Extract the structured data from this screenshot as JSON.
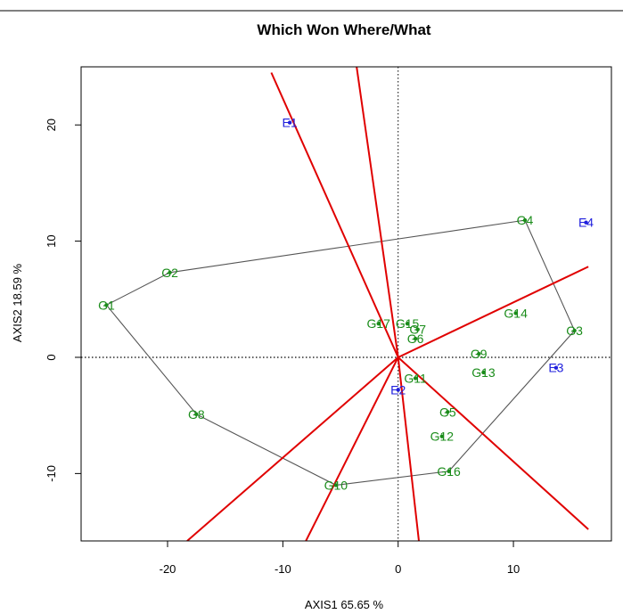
{
  "chart_data": {
    "type": "scatter",
    "title": "Which Won Where/What",
    "xlabel": "AXIS1 65.65 %",
    "ylabel": "AXIS2 18.59 %",
    "xlim": [
      -27.5,
      18.5
    ],
    "ylim": [
      -15.8,
      25
    ],
    "xticks": [
      -20,
      -10,
      0,
      10
    ],
    "yticks": [
      -10,
      0,
      10,
      20
    ],
    "colors": {
      "genotype": "#1a8c1a",
      "environment": "#2020dd",
      "sector_lines": "#e00000",
      "hull": "#555555",
      "frame": "#000000"
    },
    "genotypes": [
      {
        "label": "G1",
        "x": -25.3,
        "y": 4.5
      },
      {
        "label": "G2",
        "x": -19.8,
        "y": 7.3
      },
      {
        "label": "G3",
        "x": 15.3,
        "y": 2.3
      },
      {
        "label": "G4",
        "x": 11.0,
        "y": 11.8
      },
      {
        "label": "G5",
        "x": 4.3,
        "y": -4.7
      },
      {
        "label": "G6",
        "x": 1.5,
        "y": 1.6
      },
      {
        "label": "G7",
        "x": 1.7,
        "y": 2.4
      },
      {
        "label": "G8",
        "x": -17.5,
        "y": -4.9
      },
      {
        "label": "G9",
        "x": 7.0,
        "y": 0.3
      },
      {
        "label": "G10",
        "x": -5.4,
        "y": -11.0
      },
      {
        "label": "G11",
        "x": 1.5,
        "y": -1.8
      },
      {
        "label": "G12",
        "x": 3.8,
        "y": -6.8
      },
      {
        "label": "G13",
        "x": 7.4,
        "y": -1.3
      },
      {
        "label": "G14",
        "x": 10.2,
        "y": 3.8
      },
      {
        "label": "G15",
        "x": 0.8,
        "y": 2.9
      },
      {
        "label": "G16",
        "x": 4.4,
        "y": -9.8
      },
      {
        "label": "G17",
        "x": -1.7,
        "y": 2.9
      }
    ],
    "environments": [
      {
        "label": "E1",
        "x": -9.4,
        "y": 20.2
      },
      {
        "label": "E2",
        "x": 0.0,
        "y": -2.8
      },
      {
        "label": "E3",
        "x": 13.7,
        "y": -0.9
      },
      {
        "label": "E4",
        "x": 16.3,
        "y": 11.6
      }
    ],
    "hull": [
      "G4",
      "G3",
      "G16",
      "G10",
      "G8",
      "G1",
      "G2",
      "G4"
    ],
    "sector_rays": [
      {
        "x": -11.0,
        "y": 24.5
      },
      {
        "x": -3.6,
        "y": 25.0
      },
      {
        "x": 16.5,
        "y": 7.8
      },
      {
        "x": 16.5,
        "y": -14.8
      },
      {
        "x": 1.8,
        "y": -15.8
      },
      {
        "x": -8.0,
        "y": -15.8
      },
      {
        "x": -18.3,
        "y": -15.8
      }
    ]
  }
}
